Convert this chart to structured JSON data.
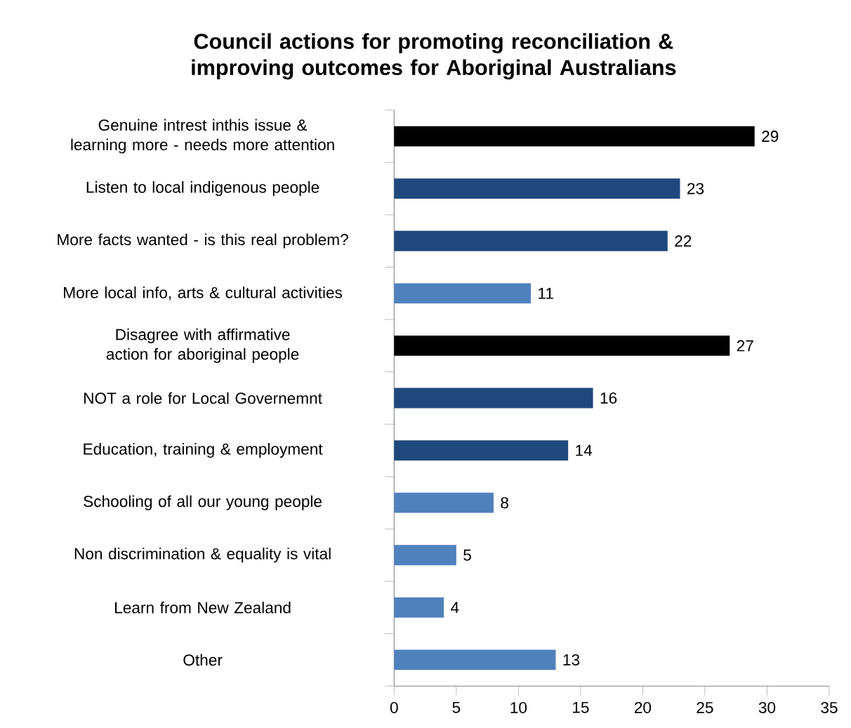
{
  "chart_data": {
    "type": "bar",
    "orientation": "horizontal",
    "title": "Council actions for promoting reconciliation & improving outcomes for Aboriginal Australians",
    "categories": [
      "Genuine intrest inthis issue & learning more - needs more attention",
      "Listen to local indigenous people",
      "More facts wanted - is this real problem?",
      "More local info, arts & cultural activities",
      "Disagree with affirmative action for aboriginal people",
      "NOT a role for Local Governemnt",
      "Education, training & employment",
      "Schooling of all our young people",
      "Non discrimination & equality is vital",
      "Learn from New Zealand",
      "Other"
    ],
    "values": [
      29,
      23,
      22,
      11,
      27,
      16,
      14,
      8,
      5,
      4,
      13
    ],
    "colors": [
      "#000000",
      "#1f497d",
      "#1f497d",
      "#4f81bd",
      "#000000",
      "#1f497d",
      "#1f497d",
      "#4f81bd",
      "#4f81bd",
      "#4f81bd",
      "#4f81bd"
    ],
    "data_labels": true,
    "xlim": [
      0,
      35
    ],
    "xticks": [
      0,
      5,
      10,
      15,
      20,
      25,
      30,
      35
    ]
  }
}
